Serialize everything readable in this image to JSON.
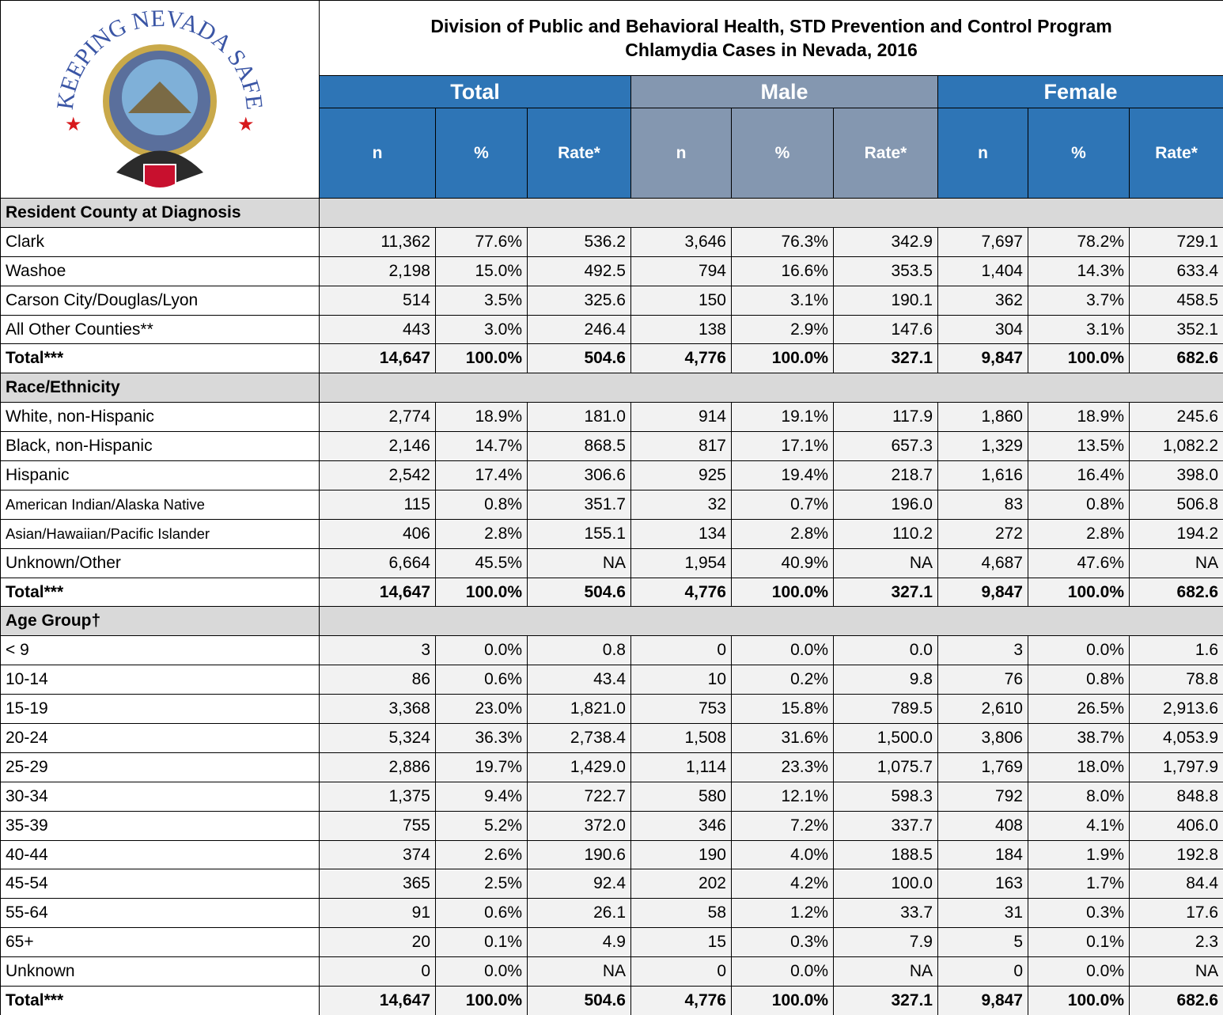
{
  "header": {
    "title_line1": "Division of Public and Behavioral Health, STD Prevention and Control Program",
    "title_line2": "Chlamydia Cases in Nevada, 2016"
  },
  "logo": {
    "text": "KEEPING NEVADA SAFE"
  },
  "groups": [
    {
      "name": "Total",
      "columns": [
        "n",
        "%",
        "Rate*"
      ]
    },
    {
      "name": "Male",
      "columns": [
        "n",
        "%",
        "Rate*"
      ]
    },
    {
      "name": "Female",
      "columns": [
        "n",
        "%",
        "Rate*"
      ]
    }
  ],
  "sections": [
    {
      "title": "Resident County at Diagnosis",
      "rows": [
        [
          "Clark",
          "11,362",
          "77.6%",
          "536.2",
          "3,646",
          "76.3%",
          "342.9",
          "7,697",
          "78.2%",
          "729.1"
        ],
        [
          "Washoe",
          "2,198",
          "15.0%",
          "492.5",
          "794",
          "16.6%",
          "353.5",
          "1,404",
          "14.3%",
          "633.4"
        ],
        [
          "Carson City/Douglas/Lyon",
          "514",
          "3.5%",
          "325.6",
          "150",
          "3.1%",
          "190.1",
          "362",
          "3.7%",
          "458.5"
        ],
        [
          "All Other Counties**",
          "443",
          "3.0%",
          "246.4",
          "138",
          "2.9%",
          "147.6",
          "304",
          "3.1%",
          "352.1"
        ]
      ],
      "total": [
        "Total***",
        "14,647",
        "100.0%",
        "504.6",
        "4,776",
        "100.0%",
        "327.1",
        "9,847",
        "100.0%",
        "682.6"
      ]
    },
    {
      "title": "Race/Ethnicity",
      "rows": [
        [
          "White, non-Hispanic",
          "2,774",
          "18.9%",
          "181.0",
          "914",
          "19.1%",
          "117.9",
          "1,860",
          "18.9%",
          "245.6"
        ],
        [
          "Black, non-Hispanic",
          "2,146",
          "14.7%",
          "868.5",
          "817",
          "17.1%",
          "657.3",
          "1,329",
          "13.5%",
          "1,082.2"
        ],
        [
          "Hispanic",
          "2,542",
          "17.4%",
          "306.6",
          "925",
          "19.4%",
          "218.7",
          "1,616",
          "16.4%",
          "398.0"
        ],
        [
          "American Indian/Alaska Native",
          "115",
          "0.8%",
          "351.7",
          "32",
          "0.7%",
          "196.0",
          "83",
          "0.8%",
          "506.8"
        ],
        [
          "Asian/Hawaiian/Pacific Islander",
          "406",
          "2.8%",
          "155.1",
          "134",
          "2.8%",
          "110.2",
          "272",
          "2.8%",
          "194.2"
        ],
        [
          "Unknown/Other",
          "6,664",
          "45.5%",
          "NA",
          "1,954",
          "40.9%",
          "NA",
          "4,687",
          "47.6%",
          "NA"
        ]
      ],
      "total": [
        "Total***",
        "14,647",
        "100.0%",
        "504.6",
        "4,776",
        "100.0%",
        "327.1",
        "9,847",
        "100.0%",
        "682.6"
      ]
    },
    {
      "title": "Age Group†",
      "rows": [
        [
          "< 9",
          "3",
          "0.0%",
          "0.8",
          "0",
          "0.0%",
          "0.0",
          "3",
          "0.0%",
          "1.6"
        ],
        [
          "10-14",
          "86",
          "0.6%",
          "43.4",
          "10",
          "0.2%",
          "9.8",
          "76",
          "0.8%",
          "78.8"
        ],
        [
          "15-19",
          "3,368",
          "23.0%",
          "1,821.0",
          "753",
          "15.8%",
          "789.5",
          "2,610",
          "26.5%",
          "2,913.6"
        ],
        [
          "20-24",
          "5,324",
          "36.3%",
          "2,738.4",
          "1,508",
          "31.6%",
          "1,500.0",
          "3,806",
          "38.7%",
          "4,053.9"
        ],
        [
          "25-29",
          "2,886",
          "19.7%",
          "1,429.0",
          "1,114",
          "23.3%",
          "1,075.7",
          "1,769",
          "18.0%",
          "1,797.9"
        ],
        [
          "30-34",
          "1,375",
          "9.4%",
          "722.7",
          "580",
          "12.1%",
          "598.3",
          "792",
          "8.0%",
          "848.8"
        ],
        [
          "35-39",
          "755",
          "5.2%",
          "372.0",
          "346",
          "7.2%",
          "337.7",
          "408",
          "4.1%",
          "406.0"
        ],
        [
          "40-44",
          "374",
          "2.6%",
          "190.6",
          "190",
          "4.0%",
          "188.5",
          "184",
          "1.9%",
          "192.8"
        ],
        [
          "45-54",
          "365",
          "2.5%",
          "92.4",
          "202",
          "4.2%",
          "100.0",
          "163",
          "1.7%",
          "84.4"
        ],
        [
          "55-64",
          "91",
          "0.6%",
          "26.1",
          "58",
          "1.2%",
          "33.7",
          "31",
          "0.3%",
          "17.6"
        ],
        [
          "65+",
          "20",
          "0.1%",
          "4.9",
          "15",
          "0.3%",
          "7.9",
          "5",
          "0.1%",
          "2.3"
        ],
        [
          "Unknown",
          "0",
          "0.0%",
          "NA",
          "0",
          "0.0%",
          "NA",
          "0",
          "0.0%",
          "NA"
        ]
      ],
      "total": [
        "Total***",
        "14,647",
        "100.0%",
        "504.6",
        "4,776",
        "100.0%",
        "327.1",
        "9,847",
        "100.0%",
        "682.6"
      ]
    }
  ]
}
